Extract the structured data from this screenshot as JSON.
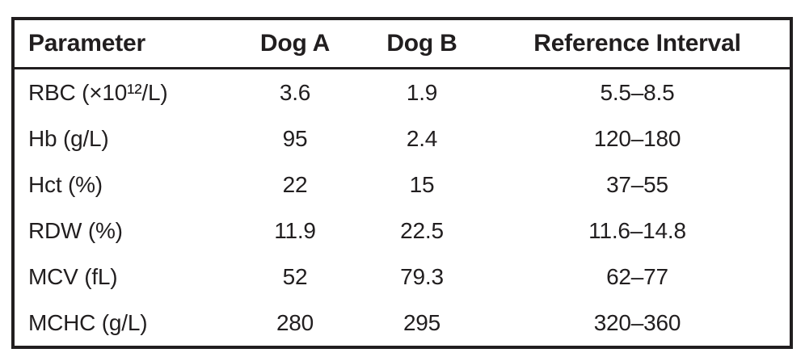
{
  "table": {
    "header": {
      "parameter": "Parameter",
      "dog_a": "Dog A",
      "dog_b": "Dog B",
      "reference_interval": "Reference Interval"
    },
    "rows": [
      {
        "parameter": "RBC (×10¹²/L)",
        "dog_a": "3.6",
        "dog_b": "1.9",
        "reference_interval": "5.5–8.5"
      },
      {
        "parameter": "Hb (g/L)",
        "dog_a": "95",
        "dog_b": "2.4",
        "reference_interval": "120–180"
      },
      {
        "parameter": "Hct (%)",
        "dog_a": "22",
        "dog_b": "15",
        "reference_interval": "37–55"
      },
      {
        "parameter": "RDW (%)",
        "dog_a": "11.9",
        "dog_b": "22.5",
        "reference_interval": "11.6–14.8"
      },
      {
        "parameter": "MCV (fL)",
        "dog_a": "52",
        "dog_b": "79.3",
        "reference_interval": "62–77"
      },
      {
        "parameter": "MCHC (g/L)",
        "dog_a": "280",
        "dog_b": "295",
        "reference_interval": "320–360"
      }
    ],
    "colors": {
      "text": "#211e1f",
      "border": "#211e1f",
      "background": "#ffffff"
    }
  }
}
